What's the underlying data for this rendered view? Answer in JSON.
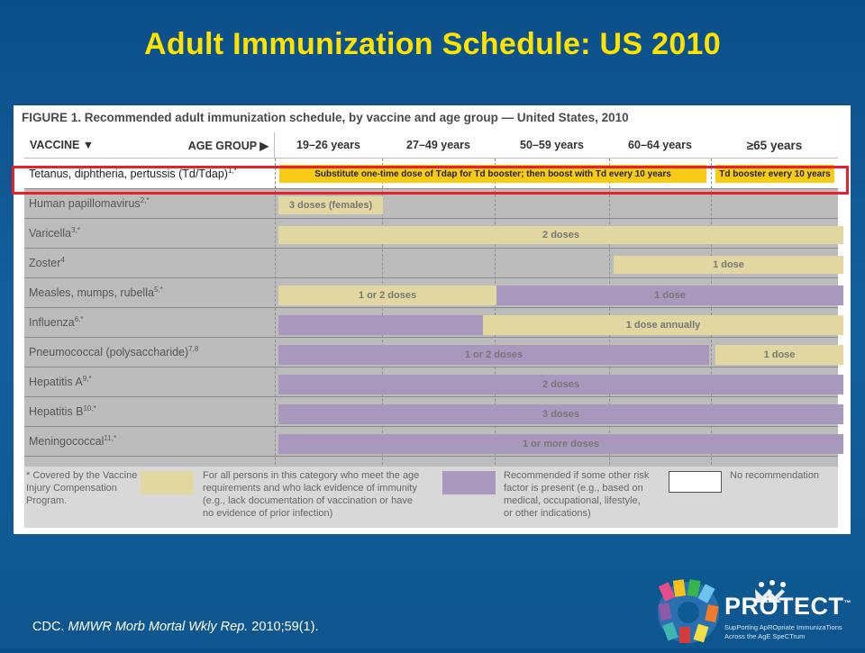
{
  "slide": {
    "title": "Adult Immunization Schedule: US 2010",
    "citation_prefix": "CDC. ",
    "citation_journal": "MMWR Morb Mortal Wkly Rep.",
    "citation_suffix": " 2010;59(1)."
  },
  "figure": {
    "caption": "FIGURE 1. Recommended adult immunization schedule, by vaccine and age group — United States, 2010",
    "header": {
      "vaccine": "VACCINE ▼",
      "age_group": "AGE GROUP ▶",
      "ages": [
        "19–26 years",
        "27–49 years",
        "50–59 years",
        "60–64 years",
        "≥65 years"
      ]
    },
    "rows": [
      {
        "name": "Tetanus, diphtheria, pertussis (Td/Tdap)",
        "sup": "1,*",
        "bars": [
          {
            "text": "Substitute one-time dose of Tdap for Td booster; then boost with Td every 10 years"
          },
          {
            "text": "Td booster every 10 years"
          }
        ]
      },
      {
        "name": "Human papillomavirus",
        "sup": "2,*",
        "bars": [
          {
            "text": "3 doses (females)"
          }
        ]
      },
      {
        "name": "Varicella",
        "sup": "3,*",
        "bars": [
          {
            "text": "2 doses"
          }
        ]
      },
      {
        "name": "Zoster",
        "sup": "4",
        "bars": [
          {
            "text": "1 dose"
          }
        ]
      },
      {
        "name": "Measles, mumps, rubella",
        "sup": "5,*",
        "bars": [
          {
            "text": "1 or 2 doses"
          },
          {
            "text": "1 dose"
          }
        ]
      },
      {
        "name": "Influenza",
        "sup": "6,*",
        "bars": [
          {
            "text": ""
          },
          {
            "text": "1 dose annually"
          }
        ]
      },
      {
        "name": "Pneumococcal (polysaccharide)",
        "sup": "7,8",
        "bars": [
          {
            "text": "1 or 2 doses"
          },
          {
            "text": "1 dose"
          }
        ]
      },
      {
        "name": "Hepatitis A",
        "sup": "9,*",
        "bars": [
          {
            "text": "2 doses"
          }
        ]
      },
      {
        "name": "Hepatitis B",
        "sup": "10,*",
        "bars": [
          {
            "text": "3 doses"
          }
        ]
      },
      {
        "name": "Meningococcal",
        "sup": "11,*",
        "bars": [
          {
            "text": "1 or more doses"
          }
        ]
      }
    ],
    "legend": {
      "covered": "* Covered by the Vaccine\nInjury Compensation\nProgram.",
      "yellow": "For all persons in this category who meet the age\nrequirements and who lack evidence of immunity\n(e.g., lack documentation of vaccination or have\nno evidence of prior infection)",
      "purple": "Recommended if some other risk\nfactor is present (e.g., based on\nmedical, occupational, lifestyle,\nor other indications)",
      "none": "No recommendation"
    },
    "colors": {
      "yellow": "#e2d7a0",
      "purple": "#a898bd",
      "highlight_yellow": "#f7cb14",
      "highlight_border": "#e4212c",
      "title": "#ffe300"
    }
  },
  "logo": {
    "name": "PROTECT",
    "tm": "™",
    "tagline_1": "SupPorting ApROpriate ImmunizaTions",
    "tagline_2": "Across the AgE SpeCTrum"
  }
}
